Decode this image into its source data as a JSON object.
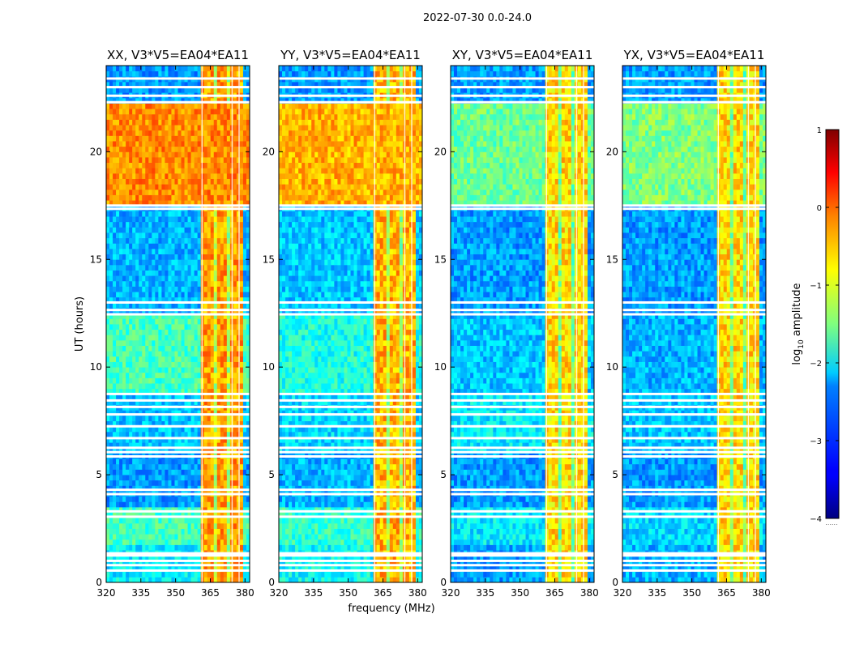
{
  "figure": {
    "suptitle": "2022-07-30 0.0-24.0",
    "xlabel": "frequency (MHz)",
    "ylabel": "UT (hours)",
    "colorbar_label_prefix": "log",
    "colorbar_label_sub": "10",
    "colorbar_label_suffix": " amplitude",
    "colorbar_extra": "......"
  },
  "chart_data": {
    "type": "heatmap",
    "title": "2022-07-30 0.0-24.0",
    "xlabel": "frequency (MHz)",
    "ylabel": "UT (hours)",
    "xlim": [
      320,
      382
    ],
    "ylim": [
      0,
      24
    ],
    "x_ticks": [
      320,
      335,
      350,
      365,
      380
    ],
    "y_ticks": [
      0,
      5,
      10,
      15,
      20
    ],
    "colorbar": {
      "label": "log10 amplitude",
      "range": [
        -4,
        1
      ],
      "ticks": [
        1,
        0,
        -1,
        -2,
        -3,
        -4
      ],
      "tick_labels": [
        "1",
        "0",
        "−1",
        "−2",
        "−3",
        "−4"
      ],
      "colormap": "jet"
    },
    "panels": [
      {
        "title": "XX, V3*V5=EA04*EA11",
        "polarization": "XX",
        "band_levels": [
          [
            0,
            1.7,
            -2.2
          ],
          [
            1.7,
            3.4,
            -1.8
          ],
          [
            3.4,
            5.9,
            -2.6
          ],
          [
            5.9,
            8.7,
            -2.4
          ],
          [
            8.7,
            12.4,
            -1.8
          ],
          [
            12.4,
            17.4,
            -2.5
          ],
          [
            17.4,
            22.2,
            -0.3
          ],
          [
            22.2,
            24,
            -2.6
          ]
        ],
        "rfi_level": -0.4
      },
      {
        "title": "YY, V3*V5=EA04*EA11",
        "polarization": "YY",
        "band_levels": [
          [
            0,
            1.7,
            -2.1
          ],
          [
            1.7,
            3.4,
            -1.9
          ],
          [
            3.4,
            5.9,
            -2.5
          ],
          [
            5.9,
            8.7,
            -2.3
          ],
          [
            8.7,
            12.4,
            -2.0
          ],
          [
            12.4,
            17.4,
            -2.4
          ],
          [
            17.4,
            22.2,
            -0.5
          ],
          [
            22.2,
            24,
            -2.6
          ]
        ],
        "rfi_level": -0.5
      },
      {
        "title": "XY, V3*V5=EA04*EA11",
        "polarization": "XY",
        "band_levels": [
          [
            0,
            1.7,
            -2.6
          ],
          [
            1.7,
            3.4,
            -2.2
          ],
          [
            3.4,
            5.9,
            -2.6
          ],
          [
            5.9,
            8.7,
            -2.2
          ],
          [
            8.7,
            12.4,
            -2.4
          ],
          [
            12.4,
            17.4,
            -2.6
          ],
          [
            17.4,
            22.2,
            -1.6
          ],
          [
            22.2,
            24,
            -2.6
          ]
        ],
        "rfi_level": -0.7
      },
      {
        "title": "YX, V3*V5=EA04*EA11",
        "polarization": "YX",
        "band_levels": [
          [
            0,
            1.7,
            -2.5
          ],
          [
            1.7,
            3.4,
            -2.3
          ],
          [
            3.4,
            5.9,
            -2.6
          ],
          [
            5.9,
            8.7,
            -2.4
          ],
          [
            8.7,
            12.4,
            -2.5
          ],
          [
            12.4,
            17.4,
            -2.6
          ],
          [
            17.4,
            22.2,
            -1.5
          ],
          [
            22.2,
            24,
            -2.6
          ]
        ],
        "rfi_level": -0.7
      }
    ],
    "rfi_band_mhz": [
      361,
      378.5
    ],
    "flagged_ut_hours": [
      0.55,
      0.8,
      1.0,
      1.25,
      1.35,
      3.05,
      3.3,
      4.1,
      4.3,
      5.85,
      6.05,
      6.25,
      6.7,
      7.25,
      7.8,
      8.15,
      8.45,
      8.75,
      12.45,
      12.65,
      13.0,
      17.35,
      17.5,
      22.3,
      22.6,
      23.0,
      23.4
    ]
  }
}
